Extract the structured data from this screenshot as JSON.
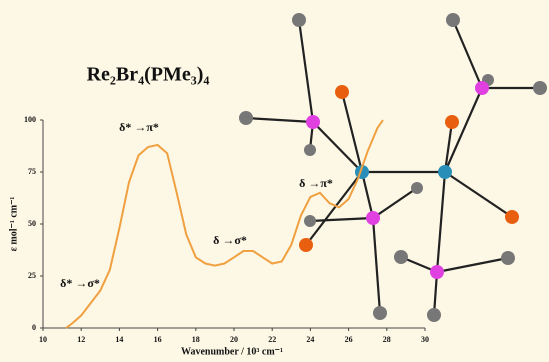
{
  "chart_data": {
    "type": "line",
    "title": "Re₂Br₄(PMe₃)₄",
    "x_label": "Wavenumber / 10³ cm⁻¹",
    "y_label": "ε mol⁻¹ cm⁻¹",
    "annotations": [
      "δ* →σ*",
      "δ* →π*",
      "δ →σ*",
      "δ →π*"
    ],
    "x": [
      11.2,
      11.5,
      12,
      12.5,
      13,
      13.5,
      14,
      14.5,
      15,
      15.5,
      16,
      16.5,
      17,
      17.5,
      18,
      18.5,
      19,
      19.5,
      20,
      20.5,
      21,
      21.5,
      22,
      22.5,
      23,
      23.5,
      24,
      24.5,
      25,
      25.5,
      26,
      26.5,
      27,
      27.5,
      27.8
    ],
    "series": [
      {
        "color": "#f0a040",
        "values": [
          0,
          2,
          6,
          12,
          18,
          28,
          48,
          70,
          83,
          87,
          88,
          84,
          65,
          45,
          34,
          31,
          30,
          31,
          34,
          37,
          37,
          34,
          31,
          32,
          40,
          54,
          63,
          65,
          60,
          58,
          62,
          72,
          85,
          96,
          100
        ]
      }
    ],
    "xlim": [
      10,
      30
    ],
    "xticks": [
      10,
      12,
      14,
      16,
      18,
      20,
      22,
      24,
      26,
      28,
      30
    ],
    "ylim": [
      0,
      100
    ],
    "yticks": [
      0,
      25,
      50,
      75,
      100
    ]
  }
}
